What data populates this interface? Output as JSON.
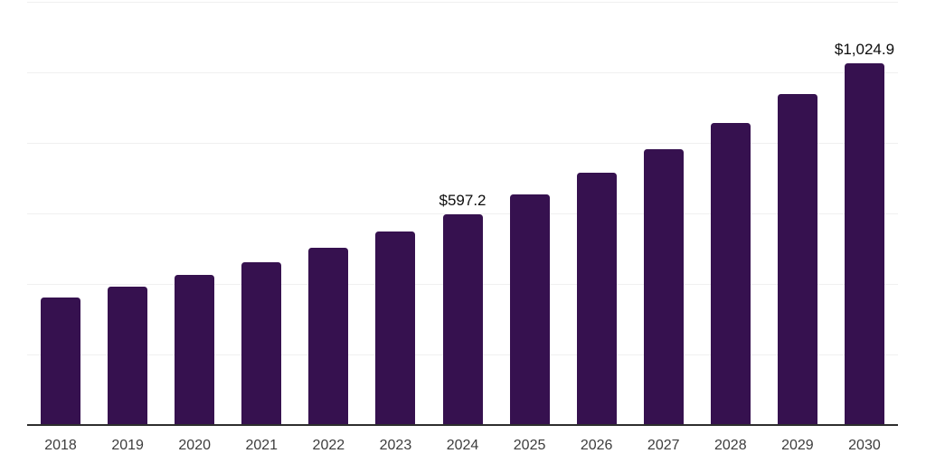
{
  "chart_data": {
    "type": "bar",
    "categories": [
      "2018",
      "2019",
      "2020",
      "2021",
      "2022",
      "2023",
      "2024",
      "2025",
      "2026",
      "2027",
      "2028",
      "2029",
      "2030"
    ],
    "values": [
      362,
      392,
      424,
      461,
      503,
      549,
      597.2,
      653.4,
      714.9,
      782.3,
      856.0,
      936.6,
      1024.9
    ],
    "annotations": [
      {
        "category": "2024",
        "text": "$597.2"
      },
      {
        "category": "2030",
        "text": "$1,024.9"
      }
    ],
    "title": "",
    "xlabel": "",
    "ylabel": "",
    "ylim": [
      0,
      1200
    ],
    "gridline_step": 200,
    "grid": true,
    "legend": false,
    "y_tick_labels_visible": false
  },
  "style": {
    "bar_color": "#36114f",
    "axis_color": "#2e2e2e",
    "gridline_color": "#f0f0f0",
    "tick_label_color": "#3d3d3d",
    "value_label_color": "#0d0d0d",
    "background_color": "#ffffff"
  }
}
